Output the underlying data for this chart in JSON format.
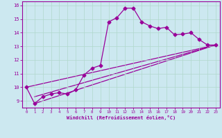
{
  "xlabel": "Windchill (Refroidissement éolien,°C)",
  "background_color": "#cce8f0",
  "line_color": "#990099",
  "xlim": [
    -0.5,
    23.5
  ],
  "ylim": [
    8.5,
    16.3
  ],
  "xticks": [
    0,
    1,
    2,
    3,
    4,
    5,
    6,
    7,
    8,
    9,
    10,
    11,
    12,
    13,
    14,
    15,
    16,
    17,
    18,
    19,
    20,
    21,
    22,
    23
  ],
  "yticks": [
    9,
    10,
    11,
    12,
    13,
    14,
    15,
    16
  ],
  "series1_x": [
    0,
    1,
    2,
    3,
    4,
    5,
    6,
    7,
    8,
    9,
    10,
    11,
    12,
    13,
    14,
    15,
    16,
    17,
    18,
    19,
    20,
    21,
    22,
    23
  ],
  "series1_y": [
    10.0,
    8.8,
    9.3,
    9.5,
    9.6,
    9.5,
    9.8,
    10.9,
    11.4,
    11.6,
    14.8,
    15.1,
    15.8,
    15.8,
    14.8,
    14.5,
    14.3,
    14.4,
    13.85,
    13.9,
    14.0,
    13.5,
    13.1,
    13.1
  ],
  "series2_x": [
    1,
    23
  ],
  "series2_y": [
    8.8,
    13.1
  ],
  "series3_x": [
    1,
    23
  ],
  "series3_y": [
    9.3,
    13.1
  ],
  "series4_x": [
    0,
    23
  ],
  "series4_y": [
    10.0,
    13.1
  ],
  "grid_color": "#b0d8cc",
  "marker": "D",
  "markersize": 2.5,
  "linewidth": 0.9
}
